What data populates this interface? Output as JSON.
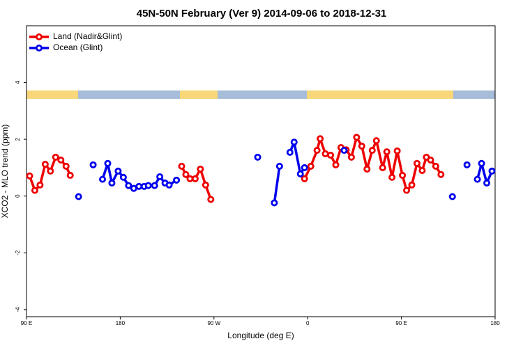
{
  "chart_data": {
    "type": "line",
    "title": "45N-50N February (Ver 9)   2014-09-06 to 2018-12-31",
    "x_label": "Longitude (deg E)",
    "y_label": "XCO2 - MLO trend (ppm)",
    "xlim": [
      90,
      540
    ],
    "ylim": [
      -4.25,
      6
    ],
    "xticks": [
      {
        "value": 90,
        "label": "90 E"
      },
      {
        "value": 180,
        "label": "180"
      },
      {
        "value": 270,
        "label": "90 W"
      },
      {
        "value": 360,
        "label": "0"
      },
      {
        "value": 450,
        "label": "90 E"
      },
      {
        "value": 540,
        "label": "180"
      }
    ],
    "yticks": [
      -4,
      -2,
      0,
      2,
      4
    ],
    "legend": "top-left",
    "series": [
      {
        "name": "Land (Nadir&Glint)",
        "color": "#ee0000",
        "x": [
          93,
          98,
          103,
          108,
          113,
          118,
          123,
          128,
          132,
          null,
          239,
          243,
          247,
          252,
          257,
          262,
          267,
          null,
          357,
          363,
          369,
          372,
          377,
          382,
          387,
          392,
          397,
          402,
          407,
          412,
          417,
          422,
          426,
          432,
          436,
          441,
          446,
          451,
          455,
          460,
          465,
          470,
          474,
          478,
          483,
          488
        ],
        "values": [
          0.71,
          0.2,
          0.39,
          1.12,
          0.88,
          1.37,
          1.27,
          1.05,
          0.73,
          null,
          1.05,
          0.76,
          0.61,
          0.61,
          0.95,
          0.39,
          -0.12,
          null,
          0.61,
          1.05,
          1.61,
          2.02,
          1.49,
          1.44,
          1.1,
          1.71,
          1.63,
          1.37,
          2.07,
          1.76,
          0.95,
          1.61,
          1.95,
          1.0,
          1.56,
          0.66,
          1.59,
          0.73,
          0.2,
          0.39,
          1.15,
          0.9,
          1.37,
          1.27,
          1.05,
          0.76
        ]
      },
      {
        "name": "Ocean (Glint)",
        "color": "#0000ee",
        "x": [
          140,
          null,
          154,
          null,
          163,
          168,
          172,
          178,
          183,
          188,
          193,
          198,
          203,
          207,
          213,
          218,
          223,
          227,
          234,
          null,
          312,
          null,
          328,
          333,
          null,
          343,
          347,
          353,
          357,
          null,
          395,
          null,
          499,
          null,
          513,
          null,
          523,
          527,
          532,
          537
        ],
        "values": [
          -0.02,
          null,
          1.1,
          null,
          0.59,
          1.15,
          0.46,
          0.88,
          0.66,
          0.37,
          0.27,
          0.34,
          0.34,
          0.37,
          0.37,
          0.68,
          0.46,
          0.39,
          0.56,
          null,
          1.37,
          null,
          -0.24,
          1.05,
          null,
          1.54,
          1.9,
          0.78,
          1.0,
          null,
          1.61,
          null,
          -0.02,
          null,
          1.1,
          null,
          0.59,
          1.15,
          0.46,
          0.88
        ]
      }
    ]
  }
}
